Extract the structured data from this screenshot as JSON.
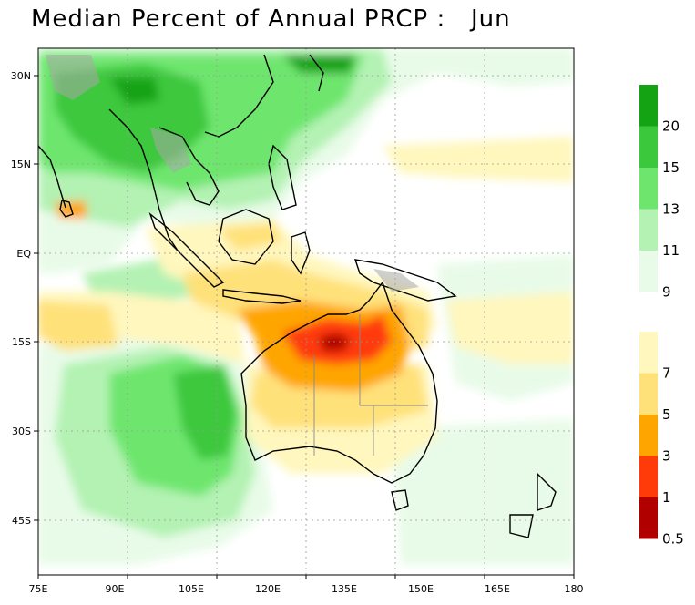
{
  "title": "Median Percent of Annual PRCP :   Jun",
  "lat_labels": [
    "30N",
    "15N",
    "EQ",
    "15S",
    "30S",
    "45S"
  ],
  "lon_labels": [
    "75E",
    "90E",
    "105E",
    "120E",
    "135E",
    "150E",
    "165E",
    "180"
  ],
  "colorbar": {
    "upper_bins": [
      {
        "color": "#13a313",
        "label": "20"
      },
      {
        "color": "#3cc83c",
        "label": "15"
      },
      {
        "color": "#6ee66e",
        "label": "13"
      },
      {
        "color": "#b3f2b3",
        "label": "11"
      },
      {
        "color": "#e8fbe8",
        "label": "9"
      }
    ],
    "lower_bins": [
      {
        "color": "#fff7bd",
        "label": "7"
      },
      {
        "color": "#ffe17a",
        "label": "5"
      },
      {
        "color": "#ffa500",
        "label": "3"
      },
      {
        "color": "#ff3b0a",
        "label": "1"
      },
      {
        "color": "#b00000",
        "label": "0.5"
      }
    ]
  },
  "colors": {
    "map_background": "#ffffff",
    "light_green": "#e8fbe8",
    "pale_green": "#b3f2b3",
    "green": "#6ee66e",
    "mid_green": "#3cc83c",
    "dark_green": "#13a313",
    "pale_yellow": "#fff7bd",
    "yellow": "#ffe17a",
    "orange": "#ffa500",
    "red_orange": "#ff3b0a",
    "dark_red": "#b00000",
    "land_grey": "#a8a8a8"
  }
}
